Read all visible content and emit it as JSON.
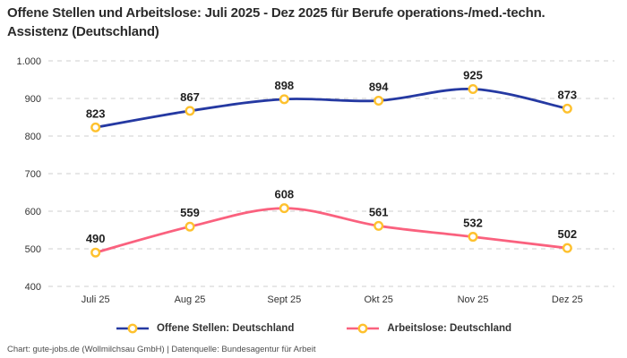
{
  "title": "Offene Stellen und Arbeitslose: Juli 2025 - Dez 2025 für Berufe operations-/med.-techn. Assistenz (Deutschland)",
  "footer": "Chart: gute-jobs.de (Wollmilchsau GmbH) | Datenquelle: Bundesagentur für Arbeit",
  "colors": {
    "open_positions_line": "#2539A2",
    "unemployed_line": "#FA617E",
    "marker_stroke": "#FEC12E",
    "marker_fill": "#FFFFFF",
    "gridline": "#CFCFCF",
    "axis_text": "#333333",
    "value_label": "#1F1F1F"
  },
  "chart_data": {
    "type": "line",
    "title": "Offene Stellen und Arbeitslose: Juli 2025 - Dez 2025 für Berufe operations-/med.-techn. Assistenz (Deutschland)",
    "categories": [
      "Juli 25",
      "Aug 25",
      "Sept 25",
      "Okt 25",
      "Nov 25",
      "Dez 25"
    ],
    "series": [
      {
        "name": "Offene Stellen: Deutschland",
        "values": [
          823,
          867,
          898,
          894,
          925,
          873
        ],
        "color": "#2539A2"
      },
      {
        "name": "Arbeitslose: Deutschland",
        "values": [
          490,
          559,
          608,
          561,
          532,
          502
        ],
        "color": "#FA617E"
      }
    ],
    "xlabel": "",
    "ylabel": "",
    "ylim": [
      400,
      1000
    ],
    "yticks": [
      400,
      500,
      600,
      700,
      800,
      900,
      1000
    ],
    "ytick_labels": [
      "400",
      "500",
      "600",
      "700",
      "800",
      "900",
      "1.000"
    ],
    "grid": "horizontal-dashed",
    "legend_position": "bottom",
    "marker": "circle-yellow-white",
    "value_labels_shown": true
  }
}
